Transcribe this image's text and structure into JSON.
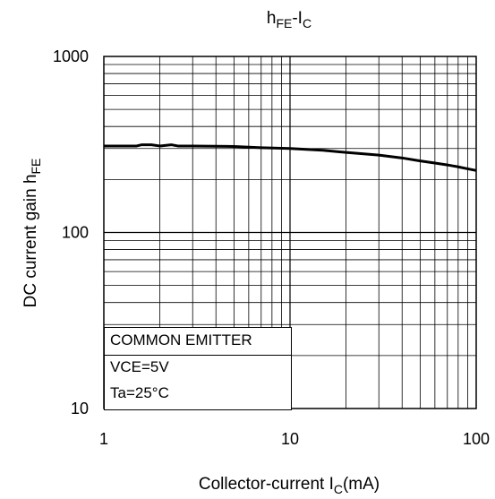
{
  "chart_data": {
    "type": "line",
    "title": {
      "main": "h",
      "sub1": "FE",
      "mid": "-I",
      "sub2": "C"
    },
    "xlabel": {
      "main": "Collector-current I",
      "sub": "C",
      "tail": "(mA)"
    },
    "ylabel": {
      "main": "DC current gain h",
      "sub": "FE"
    },
    "x_scale": "log",
    "y_scale": "log",
    "xlim": [
      1,
      100
    ],
    "ylim": [
      10,
      1000
    ],
    "x_ticks": [
      "1",
      "10",
      "100"
    ],
    "y_ticks": [
      "10",
      "100",
      "1000"
    ],
    "grid": true,
    "series": [
      {
        "color": "#000000",
        "x": [
          1,
          1.5,
          1.6,
          1.8,
          2.0,
          2.3,
          2.5,
          3,
          5,
          7,
          10,
          15,
          20,
          30,
          40,
          50,
          60,
          70,
          80,
          90,
          100
        ],
        "y": [
          310,
          310,
          315,
          315,
          310,
          315,
          310,
          310,
          308,
          303,
          300,
          293,
          285,
          275,
          265,
          255,
          248,
          242,
          236,
          230,
          225
        ]
      }
    ],
    "annotation_lines": [
      "COMMON EMITTER",
      "VCE=5V",
      "Ta=25°C"
    ]
  }
}
